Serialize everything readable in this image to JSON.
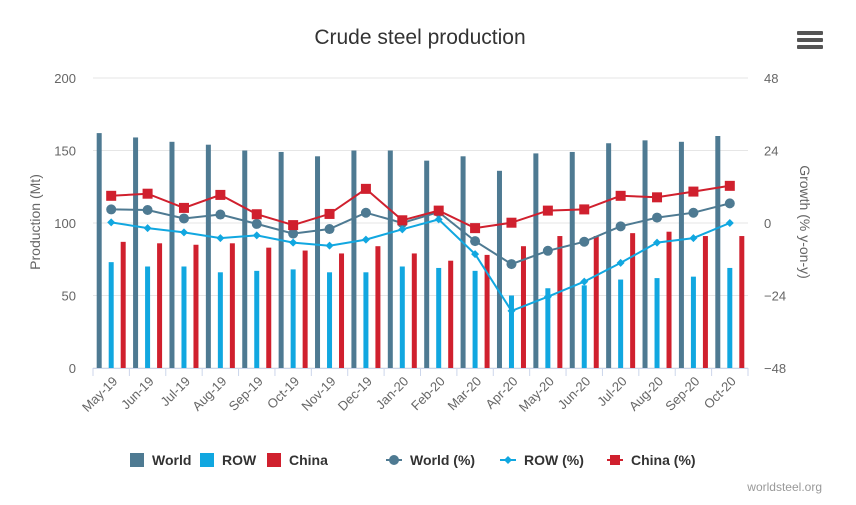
{
  "chart_data": {
    "type": "bar",
    "title": "Crude steel production",
    "ylabel": "Production (Mt)",
    "y2label": "Growth (% y-on-y)",
    "ylim": [
      0,
      200
    ],
    "y2lim": [
      -48,
      48
    ],
    "yticks": [
      "200",
      "150",
      "100",
      "50",
      "0"
    ],
    "y2ticks": [
      "48",
      "24",
      "0",
      "−24",
      "−48"
    ],
    "categories": [
      "May-19",
      "Jun-19",
      "Jul-19",
      "Aug-19",
      "Sep-19",
      "Oct-19",
      "Nov-19",
      "Dec-19",
      "Jan-20",
      "Feb-20",
      "Mar-20",
      "Apr-20",
      "May-20",
      "Jun-20",
      "Jul-20",
      "Aug-20",
      "Sep-20",
      "Oct-20"
    ],
    "grid": true,
    "legend_position": "bottom",
    "bar_series": [
      {
        "name": "World",
        "color": "#4e7a92",
        "values": [
          162,
          159,
          156,
          154,
          150,
          149,
          146,
          150,
          150,
          143,
          146,
          136,
          148,
          149,
          155,
          157,
          156,
          160
        ]
      },
      {
        "name": "ROW",
        "color": "#11a7e0",
        "values": [
          73,
          70,
          70,
          66,
          67,
          68,
          66,
          66,
          70,
          69,
          67,
          50,
          55,
          57,
          61,
          62,
          63,
          69
        ]
      },
      {
        "name": "China",
        "color": "#d0202e",
        "values": [
          87,
          86,
          85,
          86,
          83,
          81,
          79,
          84,
          79,
          74,
          78,
          84,
          91,
          91,
          93,
          94,
          91,
          91
        ]
      }
    ],
    "line_series": [
      {
        "name": "World (%)",
        "color": "#4e7a92",
        "marker": "circle",
        "values": [
          4.5,
          4.3,
          1.5,
          2.8,
          -0.3,
          -3.5,
          -2.0,
          3.4,
          0.0,
          3.6,
          -6.0,
          -13.6,
          -9.2,
          -6.2,
          -1.1,
          1.8,
          3.4,
          6.5
        ]
      },
      {
        "name": "ROW (%)",
        "color": "#11a7e0",
        "marker": "diamond",
        "values": [
          0.2,
          -1.7,
          -3.1,
          -5.0,
          -4.1,
          -6.5,
          -7.5,
          -5.5,
          -2.1,
          1.2,
          -10.3,
          -29.1,
          -24.4,
          -19.4,
          -13.2,
          -6.5,
          -5.0,
          0.0
        ]
      },
      {
        "name": "China (%)",
        "color": "#d0202e",
        "marker": "square",
        "values": [
          9.0,
          9.7,
          5.0,
          9.3,
          2.9,
          -0.7,
          3.0,
          11.3,
          0.9,
          4.1,
          -1.7,
          0.1,
          4.1,
          4.5,
          9.0,
          8.5,
          10.4,
          12.3
        ]
      }
    ],
    "credit": "worldsteel.org"
  }
}
